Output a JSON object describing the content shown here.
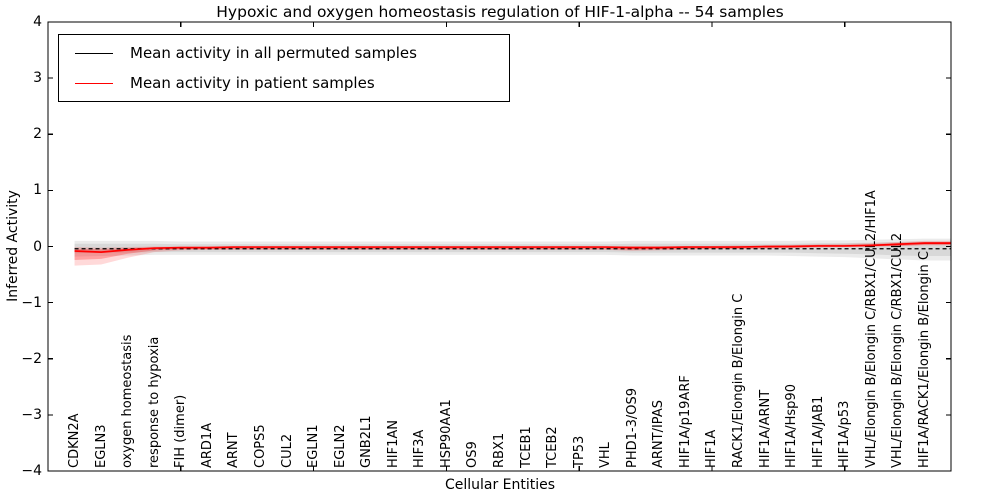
{
  "title": "Hypoxic and oxygen homeostasis regulation of HIF-1-alpha -- 54 samples",
  "axes": {
    "xlabel": "Cellular Entities",
    "ylabel": "Inferred Activity",
    "ytick_labels": [
      "4",
      "3",
      "2",
      "1",
      "0",
      "−1",
      "−2",
      "−3",
      "−4"
    ]
  },
  "legend": {
    "items": [
      {
        "label": "Mean activity in all permuted samples",
        "color": "#000000"
      },
      {
        "label": "Mean activity in patient samples",
        "color": "#ff0000"
      }
    ]
  },
  "colors": {
    "permuted_line": "#000000",
    "patient_line": "#ff0000",
    "permuted_band": "rgba(0,0,0,0.08)",
    "patient_band_outer": "rgba(255,0,0,0.15)",
    "patient_band_inner": "rgba(255,0,0,0.25)",
    "background": "#ffffff"
  },
  "chart_data": {
    "type": "line",
    "title": "Hypoxic and oxygen homeostasis regulation of HIF-1-alpha -- 54 samples",
    "xlabel": "Cellular Entities",
    "ylabel": "Inferred Activity",
    "ylim": [
      -4,
      4
    ],
    "yticks": [
      -4,
      -3,
      -2,
      -1,
      0,
      1,
      2,
      3,
      4
    ],
    "xtick_interval": 5,
    "legend_position": "upper left",
    "grid": false,
    "categories": [
      "CDKN2A",
      "EGLN3",
      "oxygen homeostasis",
      "response to hypoxia",
      "FIH (dimer)",
      "ARD1A",
      "ARNT",
      "COPS5",
      "CUL2",
      "EGLN1",
      "EGLN2",
      "GNB2L1",
      "HIF1AN",
      "HIF3A",
      "HSP90AA1",
      "OS9",
      "RBX1",
      "TCEB1",
      "TCEB2",
      "TP53",
      "VHL",
      "PHD1-3/OS9",
      "ARNT/IPAS",
      "HIF1A/p19ARF",
      "HIF1A",
      "RACK1/Elongin B/Elongin C",
      "HIF1A/ARNT",
      "HIF1A/Hsp90",
      "HIF1A/JAB1",
      "HIF1A/p53",
      "VHL/Elongin B/Elongin C/RBX1/CUL2/HIF1A",
      "VHL/Elongin B/Elongin C/RBX1/CUL2",
      "HIF1A/RACK1/Elongin B/Elongin C"
    ],
    "series": [
      {
        "name": "Mean activity in all permuted samples",
        "color": "#000000",
        "style": "dashed",
        "values": [
          -0.04,
          -0.04,
          -0.04,
          -0.04,
          -0.04,
          -0.04,
          -0.04,
          -0.04,
          -0.04,
          -0.04,
          -0.04,
          -0.04,
          -0.04,
          -0.04,
          -0.04,
          -0.04,
          -0.04,
          -0.04,
          -0.04,
          -0.04,
          -0.04,
          -0.04,
          -0.04,
          -0.04,
          -0.04,
          -0.04,
          -0.04,
          -0.04,
          -0.04,
          -0.04,
          -0.04,
          -0.04,
          -0.04
        ]
      },
      {
        "name": "Mean activity in patient samples",
        "color": "#ff0000",
        "style": "solid",
        "values": [
          -0.08,
          -0.1,
          -0.06,
          -0.03,
          -0.02,
          -0.02,
          -0.01,
          -0.01,
          -0.01,
          -0.01,
          -0.01,
          -0.01,
          -0.01,
          -0.01,
          -0.01,
          -0.01,
          -0.01,
          -0.01,
          -0.01,
          -0.01,
          -0.01,
          -0.02,
          -0.02,
          -0.01,
          -0.01,
          -0.01,
          0.0,
          0.0,
          0.01,
          0.01,
          0.02,
          0.04,
          0.06
        ]
      }
    ],
    "bands": [
      {
        "name": "permuted-range-outer",
        "color": "rgba(0,0,0,0.08)",
        "lower": [
          -0.18,
          -0.17,
          -0.16,
          -0.15,
          -0.15,
          -0.15,
          -0.15,
          -0.15,
          -0.15,
          -0.15,
          -0.15,
          -0.15,
          -0.15,
          -0.15,
          -0.15,
          -0.15,
          -0.15,
          -0.15,
          -0.15,
          -0.15,
          -0.15,
          -0.16,
          -0.16,
          -0.16,
          -0.16,
          -0.16,
          -0.16,
          -0.17,
          -0.18,
          -0.19,
          -0.21,
          -0.23,
          -0.25
        ],
        "upper": [
          0.1,
          0.1,
          0.1,
          0.1,
          0.09,
          0.09,
          0.09,
          0.09,
          0.09,
          0.09,
          0.09,
          0.09,
          0.09,
          0.09,
          0.09,
          0.09,
          0.09,
          0.09,
          0.09,
          0.09,
          0.09,
          0.1,
          0.1,
          0.1,
          0.1,
          0.1,
          0.1,
          0.1,
          0.11,
          0.11,
          0.12,
          0.13,
          0.14
        ]
      },
      {
        "name": "permuted-range-inner",
        "color": "rgba(0,0,0,0.08)",
        "lower": [
          -0.12,
          -0.11,
          -0.11,
          -0.1,
          -0.1,
          -0.1,
          -0.1,
          -0.1,
          -0.1,
          -0.1,
          -0.1,
          -0.1,
          -0.1,
          -0.1,
          -0.1,
          -0.1,
          -0.1,
          -0.1,
          -0.1,
          -0.1,
          -0.1,
          -0.11,
          -0.11,
          -0.11,
          -0.11,
          -0.11,
          -0.11,
          -0.11,
          -0.12,
          -0.13,
          -0.14,
          -0.16,
          -0.17
        ],
        "upper": [
          0.05,
          0.05,
          0.05,
          0.05,
          0.04,
          0.04,
          0.04,
          0.04,
          0.04,
          0.04,
          0.04,
          0.04,
          0.04,
          0.04,
          0.04,
          0.04,
          0.04,
          0.04,
          0.04,
          0.04,
          0.04,
          0.05,
          0.05,
          0.05,
          0.05,
          0.05,
          0.05,
          0.05,
          0.06,
          0.06,
          0.07,
          0.08,
          0.09
        ]
      },
      {
        "name": "patient-range-outer",
        "color": "rgba(255,0,0,0.15)",
        "lower": [
          -0.34,
          -0.32,
          -0.2,
          -0.1,
          -0.07,
          -0.06,
          -0.06,
          -0.06,
          -0.06,
          -0.06,
          -0.06,
          -0.06,
          -0.06,
          -0.06,
          -0.06,
          -0.06,
          -0.06,
          -0.06,
          -0.06,
          -0.06,
          -0.06,
          -0.08,
          -0.07,
          -0.06,
          -0.05,
          -0.05,
          -0.04,
          -0.03,
          -0.02,
          -0.01,
          0.0,
          0.01,
          0.02
        ],
        "upper": [
          -0.01,
          -0.02,
          -0.01,
          0.0,
          0.0,
          0.0,
          0.0,
          0.0,
          0.0,
          0.0,
          0.0,
          0.0,
          0.0,
          0.0,
          0.0,
          0.0,
          0.0,
          0.0,
          0.0,
          0.0,
          0.0,
          0.01,
          0.01,
          0.01,
          0.01,
          0.02,
          0.02,
          0.03,
          0.04,
          0.05,
          0.06,
          0.08,
          0.1
        ]
      },
      {
        "name": "patient-range-inner",
        "color": "rgba(255,0,0,0.25)",
        "lower": [
          -0.24,
          -0.22,
          -0.13,
          -0.07,
          -0.05,
          -0.05,
          -0.05,
          -0.05,
          -0.05,
          -0.05,
          -0.05,
          -0.05,
          -0.05,
          -0.05,
          -0.05,
          -0.05,
          -0.05,
          -0.05,
          -0.05,
          -0.05,
          -0.05,
          -0.06,
          -0.05,
          -0.05,
          -0.04,
          -0.04,
          -0.03,
          -0.02,
          -0.01,
          -0.01,
          0.0,
          0.01,
          0.03
        ],
        "upper": [
          -0.04,
          -0.05,
          -0.03,
          -0.01,
          -0.01,
          -0.01,
          -0.01,
          -0.01,
          -0.01,
          -0.01,
          -0.01,
          -0.01,
          -0.01,
          -0.01,
          -0.01,
          -0.01,
          -0.01,
          -0.01,
          -0.01,
          -0.01,
          -0.01,
          0.0,
          0.0,
          0.0,
          0.0,
          0.01,
          0.01,
          0.02,
          0.03,
          0.03,
          0.04,
          0.06,
          0.08
        ]
      }
    ]
  }
}
